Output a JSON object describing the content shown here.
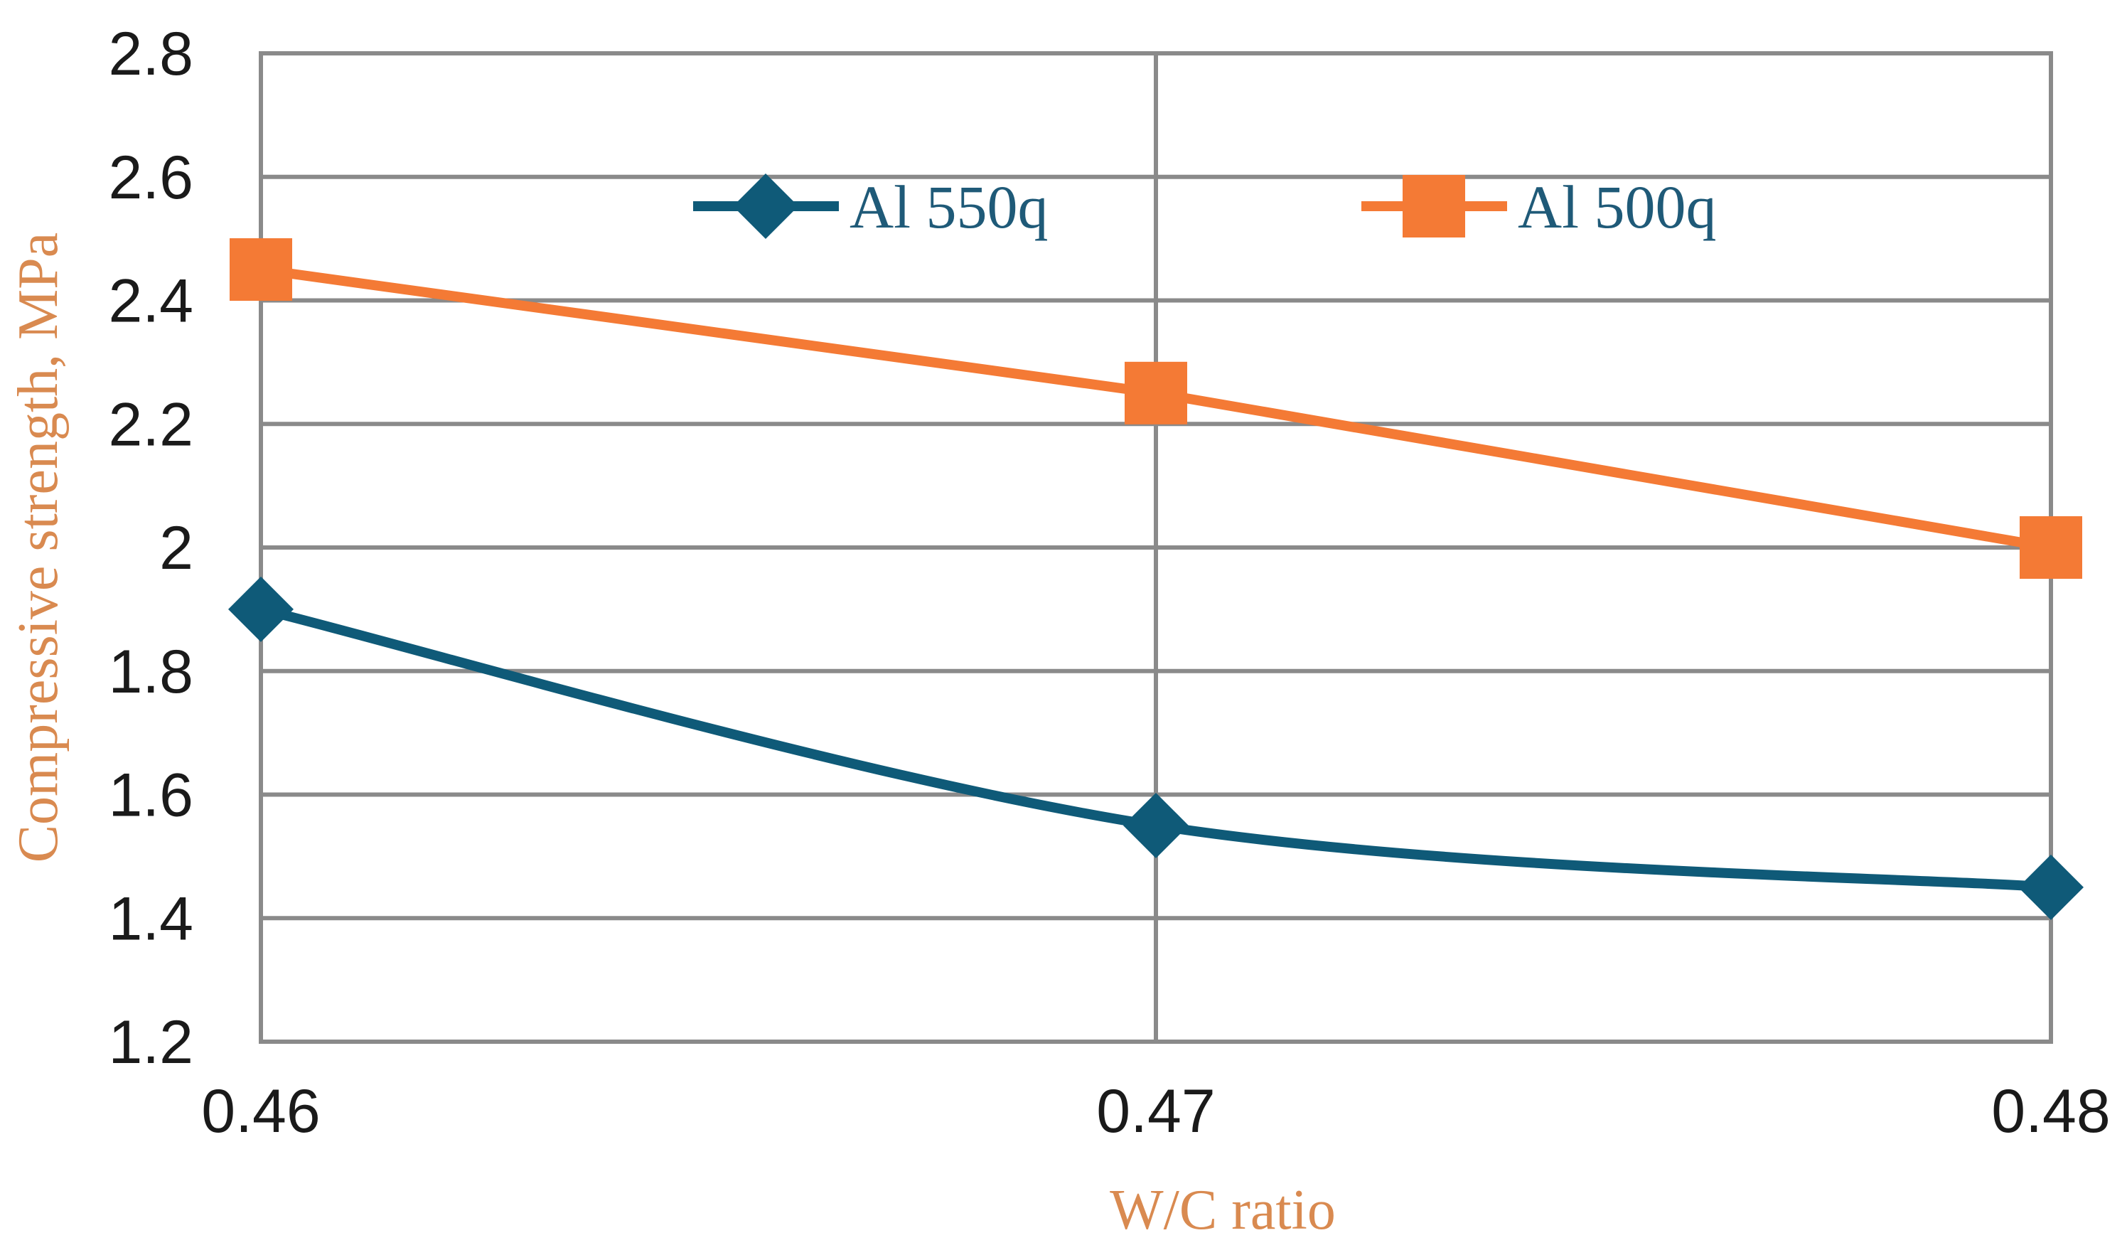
{
  "chart_data": {
    "type": "line",
    "title": "",
    "xlabel": "W/C ratio",
    "ylabel": "Compressive strength, MPa",
    "x": [
      0.46,
      0.47,
      0.48
    ],
    "x_tick_labels": [
      "0.46",
      "0.47",
      "0.48"
    ],
    "y_ticks": [
      1.2,
      1.4,
      1.6,
      1.8,
      2,
      2.2,
      2.4,
      2.6,
      2.8
    ],
    "y_tick_labels": [
      "1.2",
      "1.4",
      "1.6",
      "1.8",
      "2",
      "2.2",
      "2.4",
      "2.6",
      "2.8"
    ],
    "ylim": [
      1.2,
      2.8
    ],
    "xlim": [
      0.46,
      0.48
    ],
    "grid": true,
    "legend_position": "top",
    "series": [
      {
        "name": "Al 550q",
        "values": [
          1.9,
          1.55,
          1.45
        ],
        "color": "#0f5a78",
        "marker": "diamond"
      },
      {
        "name": "Al 500q",
        "values": [
          2.45,
          2.25,
          2.0
        ],
        "color": "#f47a35",
        "marker": "square"
      }
    ]
  }
}
